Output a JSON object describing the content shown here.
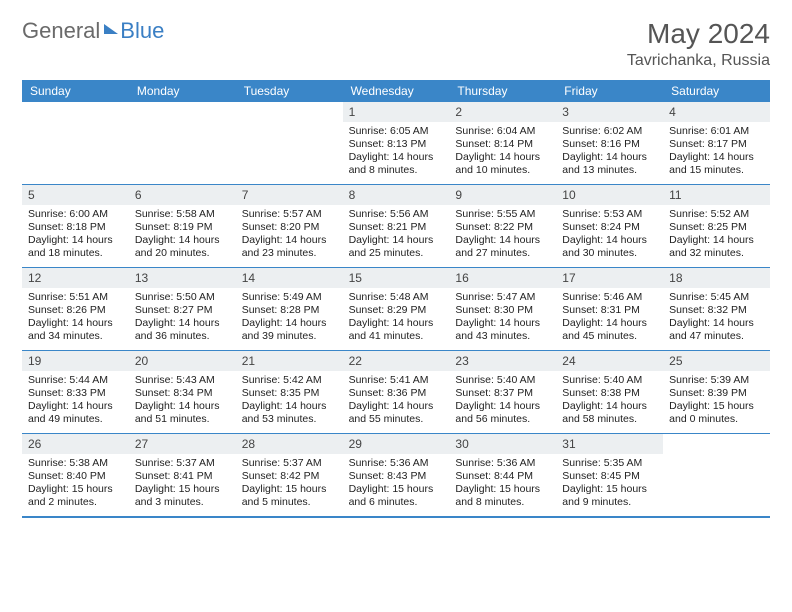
{
  "logo": {
    "part1": "General",
    "part2": "Blue"
  },
  "title": "May 2024",
  "location": "Tavrichanka, Russia",
  "headers": [
    "Sunday",
    "Monday",
    "Tuesday",
    "Wednesday",
    "Thursday",
    "Friday",
    "Saturday"
  ],
  "colors": {
    "header_bg": "#3a86c8",
    "header_text": "#ffffff",
    "daynum_bg": "#eceff1",
    "text": "#222222",
    "border": "#3a86c8"
  },
  "weeks": [
    [
      {
        "n": "",
        "empty": true
      },
      {
        "n": "",
        "empty": true
      },
      {
        "n": "",
        "empty": true
      },
      {
        "n": "1",
        "sr": "Sunrise: 6:05 AM",
        "ss": "Sunset: 8:13 PM",
        "dl": "Daylight: 14 hours and 8 minutes."
      },
      {
        "n": "2",
        "sr": "Sunrise: 6:04 AM",
        "ss": "Sunset: 8:14 PM",
        "dl": "Daylight: 14 hours and 10 minutes."
      },
      {
        "n": "3",
        "sr": "Sunrise: 6:02 AM",
        "ss": "Sunset: 8:16 PM",
        "dl": "Daylight: 14 hours and 13 minutes."
      },
      {
        "n": "4",
        "sr": "Sunrise: 6:01 AM",
        "ss": "Sunset: 8:17 PM",
        "dl": "Daylight: 14 hours and 15 minutes."
      }
    ],
    [
      {
        "n": "5",
        "sr": "Sunrise: 6:00 AM",
        "ss": "Sunset: 8:18 PM",
        "dl": "Daylight: 14 hours and 18 minutes."
      },
      {
        "n": "6",
        "sr": "Sunrise: 5:58 AM",
        "ss": "Sunset: 8:19 PM",
        "dl": "Daylight: 14 hours and 20 minutes."
      },
      {
        "n": "7",
        "sr": "Sunrise: 5:57 AM",
        "ss": "Sunset: 8:20 PM",
        "dl": "Daylight: 14 hours and 23 minutes."
      },
      {
        "n": "8",
        "sr": "Sunrise: 5:56 AM",
        "ss": "Sunset: 8:21 PM",
        "dl": "Daylight: 14 hours and 25 minutes."
      },
      {
        "n": "9",
        "sr": "Sunrise: 5:55 AM",
        "ss": "Sunset: 8:22 PM",
        "dl": "Daylight: 14 hours and 27 minutes."
      },
      {
        "n": "10",
        "sr": "Sunrise: 5:53 AM",
        "ss": "Sunset: 8:24 PM",
        "dl": "Daylight: 14 hours and 30 minutes."
      },
      {
        "n": "11",
        "sr": "Sunrise: 5:52 AM",
        "ss": "Sunset: 8:25 PM",
        "dl": "Daylight: 14 hours and 32 minutes."
      }
    ],
    [
      {
        "n": "12",
        "sr": "Sunrise: 5:51 AM",
        "ss": "Sunset: 8:26 PM",
        "dl": "Daylight: 14 hours and 34 minutes."
      },
      {
        "n": "13",
        "sr": "Sunrise: 5:50 AM",
        "ss": "Sunset: 8:27 PM",
        "dl": "Daylight: 14 hours and 36 minutes."
      },
      {
        "n": "14",
        "sr": "Sunrise: 5:49 AM",
        "ss": "Sunset: 8:28 PM",
        "dl": "Daylight: 14 hours and 39 minutes."
      },
      {
        "n": "15",
        "sr": "Sunrise: 5:48 AM",
        "ss": "Sunset: 8:29 PM",
        "dl": "Daylight: 14 hours and 41 minutes."
      },
      {
        "n": "16",
        "sr": "Sunrise: 5:47 AM",
        "ss": "Sunset: 8:30 PM",
        "dl": "Daylight: 14 hours and 43 minutes."
      },
      {
        "n": "17",
        "sr": "Sunrise: 5:46 AM",
        "ss": "Sunset: 8:31 PM",
        "dl": "Daylight: 14 hours and 45 minutes."
      },
      {
        "n": "18",
        "sr": "Sunrise: 5:45 AM",
        "ss": "Sunset: 8:32 PM",
        "dl": "Daylight: 14 hours and 47 minutes."
      }
    ],
    [
      {
        "n": "19",
        "sr": "Sunrise: 5:44 AM",
        "ss": "Sunset: 8:33 PM",
        "dl": "Daylight: 14 hours and 49 minutes."
      },
      {
        "n": "20",
        "sr": "Sunrise: 5:43 AM",
        "ss": "Sunset: 8:34 PM",
        "dl": "Daylight: 14 hours and 51 minutes."
      },
      {
        "n": "21",
        "sr": "Sunrise: 5:42 AM",
        "ss": "Sunset: 8:35 PM",
        "dl": "Daylight: 14 hours and 53 minutes."
      },
      {
        "n": "22",
        "sr": "Sunrise: 5:41 AM",
        "ss": "Sunset: 8:36 PM",
        "dl": "Daylight: 14 hours and 55 minutes."
      },
      {
        "n": "23",
        "sr": "Sunrise: 5:40 AM",
        "ss": "Sunset: 8:37 PM",
        "dl": "Daylight: 14 hours and 56 minutes."
      },
      {
        "n": "24",
        "sr": "Sunrise: 5:40 AM",
        "ss": "Sunset: 8:38 PM",
        "dl": "Daylight: 14 hours and 58 minutes."
      },
      {
        "n": "25",
        "sr": "Sunrise: 5:39 AM",
        "ss": "Sunset: 8:39 PM",
        "dl": "Daylight: 15 hours and 0 minutes."
      }
    ],
    [
      {
        "n": "26",
        "sr": "Sunrise: 5:38 AM",
        "ss": "Sunset: 8:40 PM",
        "dl": "Daylight: 15 hours and 2 minutes."
      },
      {
        "n": "27",
        "sr": "Sunrise: 5:37 AM",
        "ss": "Sunset: 8:41 PM",
        "dl": "Daylight: 15 hours and 3 minutes."
      },
      {
        "n": "28",
        "sr": "Sunrise: 5:37 AM",
        "ss": "Sunset: 8:42 PM",
        "dl": "Daylight: 15 hours and 5 minutes."
      },
      {
        "n": "29",
        "sr": "Sunrise: 5:36 AM",
        "ss": "Sunset: 8:43 PM",
        "dl": "Daylight: 15 hours and 6 minutes."
      },
      {
        "n": "30",
        "sr": "Sunrise: 5:36 AM",
        "ss": "Sunset: 8:44 PM",
        "dl": "Daylight: 15 hours and 8 minutes."
      },
      {
        "n": "31",
        "sr": "Sunrise: 5:35 AM",
        "ss": "Sunset: 8:45 PM",
        "dl": "Daylight: 15 hours and 9 minutes."
      },
      {
        "n": "",
        "empty": true
      }
    ]
  ]
}
